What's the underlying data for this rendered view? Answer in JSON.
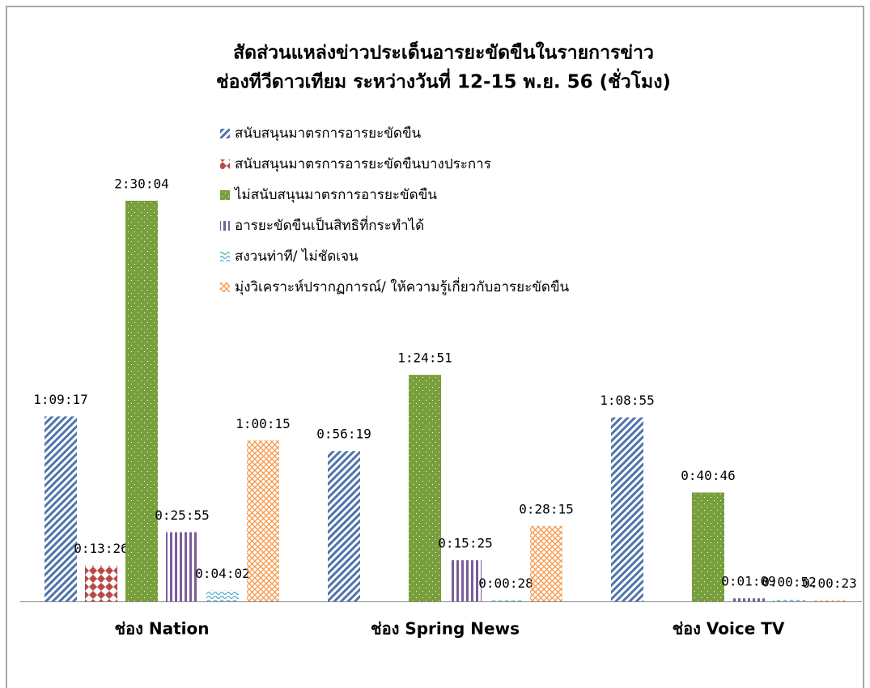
{
  "chart_data": {
    "type": "bar",
    "title": [
      "สัดส่วนแหล่งข่าวประเด็นอารยะขัดขืนในรายการข่าว",
      "ช่องทีวีดาวเทียม ระหว่างวันที่ 12-15 พ.ย. 56 (ชั่วโมง)"
    ],
    "categories": [
      "ช่อง Nation",
      "ช่อง Spring News",
      "ช่อง Voice TV"
    ],
    "series": [
      {
        "name": "สนับสนุนมาตรการอารยะขัดขืน",
        "color": "#4f74aa",
        "pattern": "diagonal",
        "values": [
          4157,
          3379,
          4135
        ],
        "value_labels": [
          "1:09:17",
          "0:56:19",
          "1:08:55"
        ]
      },
      {
        "name": "สนับสนุนมาตรการอารยะขัดขืนบางประการ",
        "color": "#b84a47",
        "pattern": "diamond",
        "values": [
          806,
          null,
          null
        ],
        "value_labels": [
          "0:13:26",
          null,
          null
        ]
      },
      {
        "name": "ไม่สนับสนุนมาตรการอารยะขัดขืน",
        "color": "#77a03c",
        "pattern": "dots",
        "values": [
          9004,
          5091,
          2446
        ],
        "value_labels": [
          "2:30:04",
          "1:24:51",
          "0:40:46"
        ]
      },
      {
        "name": "อารยะขัดขืนเป็นสิทธิที่กระทำได้",
        "color": "#7a5c9c",
        "pattern": "vertical",
        "values": [
          1555,
          925,
          69
        ],
        "value_labels": [
          "0:25:55",
          "0:15:25",
          "0:01:09"
        ]
      },
      {
        "name": "สงวนท่าที/ ไม่ชัดเจน",
        "color": "#4bacc6",
        "pattern": "wave",
        "values": [
          242,
          28,
          52
        ],
        "value_labels": [
          "0:04:02",
          "0:00:28",
          "0:00:52"
        ]
      },
      {
        "name": "มุ่งวิเคราะห์ปรากฏการณ์/ ให้ความรู้เกี่ยวกับอารยะขัดขืน",
        "color": "#f79646",
        "pattern": "cross",
        "values": [
          3615,
          1695,
          23
        ],
        "value_labels": [
          "1:00:15",
          "0:28:15",
          "0:00:23"
        ]
      }
    ]
  }
}
